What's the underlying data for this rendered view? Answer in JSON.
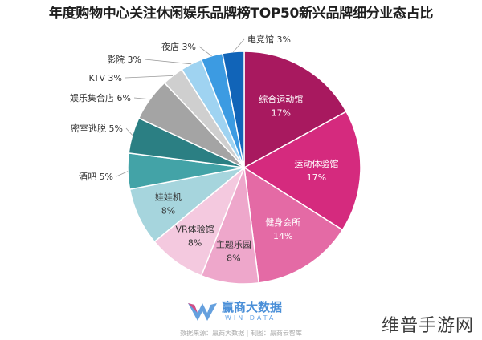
{
  "title": "年度购物中心关注休闲娱乐品牌榜TOP50新兴品牌细分业态占比",
  "chart_data": {
    "type": "pie",
    "slices": [
      {
        "label": "综合运动馆",
        "value": 17,
        "pct_label": "17%",
        "color": "#a8195f",
        "inside": true
      },
      {
        "label": "运动体验馆",
        "value": 17,
        "pct_label": "17%",
        "color": "#d52a7e",
        "inside": true
      },
      {
        "label": "健身会所",
        "value": 14,
        "pct_label": "14%",
        "color": "#e46aa5",
        "inside": true
      },
      {
        "label": "主题乐园",
        "value": 8,
        "pct_label": "8%",
        "color": "#eea7cb",
        "inside": true
      },
      {
        "label": "VR体验馆",
        "value": 8,
        "pct_label": "8%",
        "color": "#f4c9df",
        "inside": true
      },
      {
        "label": "娃娃机",
        "value": 8,
        "pct_label": "8%",
        "color": "#a6d5dd",
        "inside": true
      },
      {
        "label": "酒吧",
        "value": 5,
        "pct_label": "5%",
        "color": "#43a3a7",
        "inside": false
      },
      {
        "label": "密室逃脱",
        "value": 5,
        "pct_label": "5%",
        "color": "#2b7f83",
        "inside": false
      },
      {
        "label": "娱乐集合店",
        "value": 6,
        "pct_label": "6%",
        "color": "#a4a4a4",
        "inside": false
      },
      {
        "label": "KTV",
        "value": 3,
        "pct_label": "3%",
        "color": "#cfcfcf",
        "inside": false
      },
      {
        "label": "影院",
        "value": 3,
        "pct_label": "3%",
        "color": "#9fd3f1",
        "inside": false
      },
      {
        "label": "夜店",
        "value": 3,
        "pct_label": "3%",
        "color": "#3c9be2",
        "inside": false
      },
      {
        "label": "电竞馆",
        "value": 3,
        "pct_label": "3%",
        "color": "#1164b8",
        "inside": false
      }
    ]
  },
  "logo": {
    "cn": "赢商大数据",
    "en": "WIN DATA"
  },
  "source": "数据来源：赢商大数据 | 制图：赢商云智库",
  "watermark": "维普手游网"
}
